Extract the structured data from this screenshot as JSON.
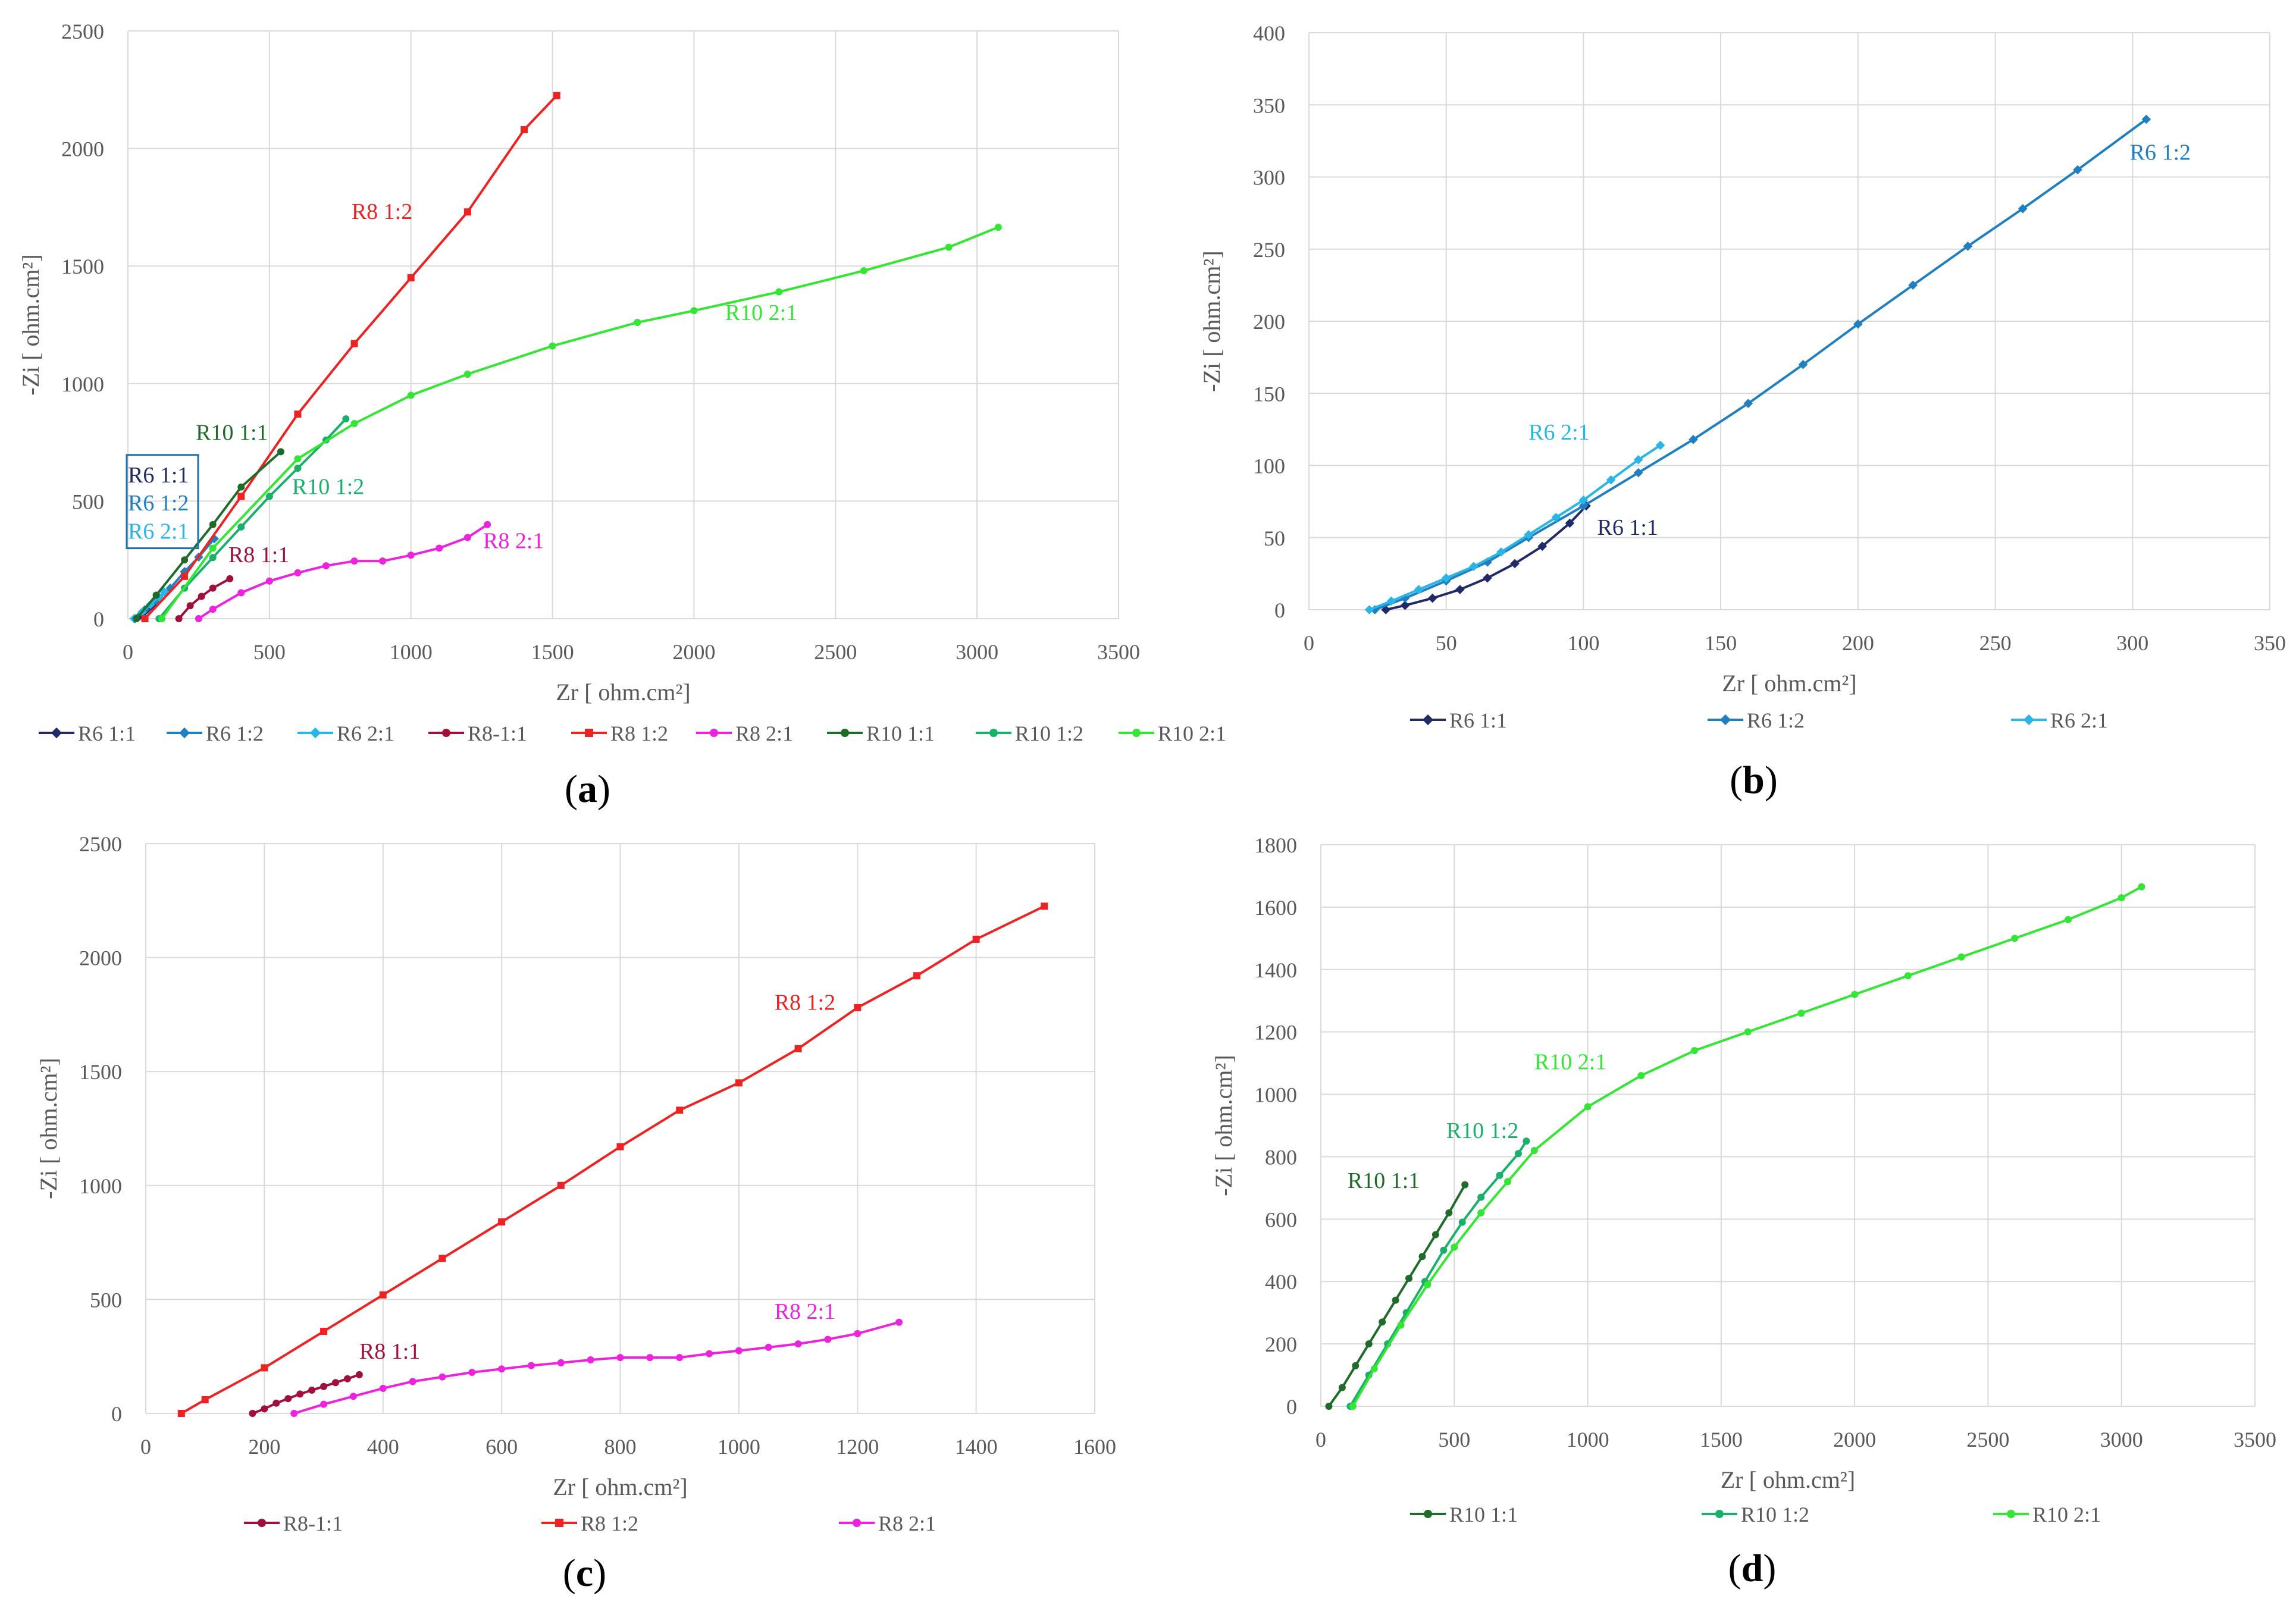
{
  "chart_data": [
    {
      "panel_label": "(a)",
      "type": "line",
      "xlabel": "Zr [ ohm.cm²]",
      "ylabel": "-Zi [ ohm.cm²]",
      "xlim": [
        0,
        3500
      ],
      "xstep": 500,
      "ylim": [
        0,
        2500
      ],
      "ystep": 500,
      "grid": true,
      "legend_position": "bottom",
      "boxed_label_group": [
        "R6 1:1",
        "R6 1:2",
        "R6 2:1"
      ],
      "series": [
        {
          "name": "R6 1:1",
          "legend": "R6 1:1",
          "color": "#1f2a66",
          "marker": "diamond",
          "x": [
            25,
            40,
            55,
            70,
            85,
            101
          ],
          "y": [
            0,
            10,
            25,
            42,
            58,
            72
          ]
        },
        {
          "name": "R6 1:2",
          "legend": "R6 1:2",
          "color": "#1f7fc1",
          "marker": "diamond",
          "x": [
            24,
            60,
            100,
            150,
            200,
            250,
            305
          ],
          "y": [
            0,
            38,
            78,
            130,
            200,
            262,
            340
          ]
        },
        {
          "name": "R6 2:1",
          "legend": "R6 2:1",
          "color": "#29b6e6",
          "marker": "diamond",
          "x": [
            22,
            50,
            80,
            110,
            128
          ],
          "y": [
            0,
            28,
            60,
            92,
            114
          ]
        },
        {
          "name": "R8-1:1",
          "legend": "R8-1:1",
          "color": "#a0103a",
          "marker": "dot",
          "x": [
            180,
            220,
            260,
            300,
            360
          ],
          "y": [
            0,
            55,
            95,
            130,
            170
          ]
        },
        {
          "name": "R8 1:2",
          "legend": "R8 1:2",
          "color": "#ee2222",
          "marker": "square",
          "x": [
            60,
            200,
            400,
            600,
            800,
            1000,
            1200,
            1400,
            1515
          ],
          "y": [
            0,
            180,
            520,
            870,
            1170,
            1450,
            1730,
            2080,
            2225
          ]
        },
        {
          "name": "R8 2:1",
          "legend": "R8 2:1",
          "color": "#ee22dd",
          "marker": "dot",
          "x": [
            250,
            300,
            400,
            500,
            600,
            700,
            800,
            900,
            1000,
            1100,
            1200,
            1270
          ],
          "y": [
            0,
            40,
            110,
            160,
            195,
            225,
            245,
            245,
            270,
            300,
            345,
            400
          ]
        },
        {
          "name": "R10 1:1",
          "legend": "R10 1:1",
          "color": "#1e6b2a",
          "marker": "dot",
          "x": [
            30,
            100,
            200,
            300,
            400,
            540
          ],
          "y": [
            0,
            100,
            250,
            400,
            560,
            710
          ]
        },
        {
          "name": "R10 1:2",
          "legend": "R10 1:2",
          "color": "#19b06a",
          "marker": "dot",
          "x": [
            110,
            200,
            300,
            400,
            500,
            600,
            700,
            770
          ],
          "y": [
            0,
            130,
            260,
            390,
            520,
            640,
            760,
            850
          ]
        },
        {
          "name": "R10 2:1",
          "legend": "R10 2:1",
          "color": "#33e633",
          "marker": "dot",
          "x": [
            120,
            300,
            600,
            800,
            1000,
            1200,
            1500,
            1800,
            2000,
            2300,
            2600,
            2900,
            3075
          ],
          "y": [
            0,
            300,
            680,
            830,
            950,
            1040,
            1160,
            1260,
            1310,
            1390,
            1480,
            1580,
            1665
          ]
        }
      ],
      "annotations": [
        {
          "text": "R8 1:2",
          "series": "R8 1:2",
          "x": 790,
          "y": 1700
        },
        {
          "text": "R10 2:1",
          "series": "R10 2:1",
          "x": 2110,
          "y": 1270
        },
        {
          "text": "R10 1:1",
          "series": "R10 1:1",
          "x": 240,
          "y": 760
        },
        {
          "text": "R10 1:2",
          "series": "R10 1:2",
          "x": 580,
          "y": 530
        },
        {
          "text": "R8 1:1",
          "series": "R8-1:1",
          "x": 355,
          "y": 240
        },
        {
          "text": "R8 2:1",
          "series": "R8 2:1",
          "x": 1255,
          "y": 300
        },
        {
          "text": "R6 1:1",
          "series": "R6 1:1",
          "x": 0,
          "y": 580
        },
        {
          "text": "R6 1:2",
          "series": "R6 1:2",
          "x": 0,
          "y": 460
        },
        {
          "text": "R6 2:1",
          "series": "R6 2:1",
          "x": 0,
          "y": 340
        }
      ]
    },
    {
      "panel_label": "(b)",
      "type": "line",
      "xlabel": "Zr [ ohm.cm²]",
      "ylabel": "-Zi [ ohm.cm²]",
      "xlim": [
        0,
        350
      ],
      "xstep": 50,
      "ylim": [
        0,
        400
      ],
      "ystep": 50,
      "grid": true,
      "legend_position": "bottom",
      "series": [
        {
          "name": "R6 1:1",
          "legend": "R6 1:1",
          "color": "#1f2a66",
          "marker": "diamond",
          "x": [
            28,
            35,
            45,
            55,
            65,
            75,
            85,
            95,
            101
          ],
          "y": [
            0,
            3,
            8,
            14,
            22,
            32,
            44,
            60,
            72
          ]
        },
        {
          "name": "R6 1:2",
          "legend": "R6 1:2",
          "color": "#1f7fc1",
          "marker": "diamond",
          "x": [
            24,
            35,
            50,
            65,
            80,
            100,
            120,
            140,
            160,
            180,
            200,
            220,
            240,
            260,
            280,
            305
          ],
          "y": [
            0,
            8,
            20,
            33,
            50,
            72,
            95,
            118,
            143,
            170,
            198,
            225,
            252,
            278,
            305,
            340
          ]
        },
        {
          "name": "R6 2:1",
          "legend": "R6 2:1",
          "color": "#29b6e6",
          "marker": "diamond",
          "x": [
            22,
            30,
            40,
            50,
            60,
            70,
            80,
            90,
            100,
            110,
            120,
            128
          ],
          "y": [
            0,
            6,
            14,
            22,
            30,
            40,
            52,
            64,
            76,
            90,
            104,
            114
          ]
        }
      ],
      "annotations": [
        {
          "text": "R6 1:2",
          "series": "R6 1:2",
          "x": 299,
          "y": 312
        },
        {
          "text": "R6 2:1",
          "series": "R6 2:1",
          "x": 80,
          "y": 118
        },
        {
          "text": "R6 1:1",
          "series": "R6 1:1",
          "x": 105,
          "y": 52
        }
      ]
    },
    {
      "panel_label": "(c)",
      "type": "line",
      "xlabel": "Zr [ ohm.cm²]",
      "ylabel": "-Zi [ ohm.cm²]",
      "xlim": [
        0,
        1600
      ],
      "xstep": 200,
      "ylim": [
        0,
        2500
      ],
      "ystep": 500,
      "grid": true,
      "legend_position": "bottom",
      "series": [
        {
          "name": "R8-1:1",
          "legend": "R8-1:1",
          "color": "#a0103a",
          "marker": "dot",
          "x": [
            180,
            200,
            220,
            240,
            260,
            280,
            300,
            320,
            340,
            360
          ],
          "y": [
            0,
            20,
            45,
            65,
            85,
            102,
            118,
            135,
            152,
            170
          ]
        },
        {
          "name": "R8 1:2",
          "legend": "R8 1:2",
          "color": "#ee2222",
          "marker": "square",
          "x": [
            60,
            100,
            200,
            300,
            400,
            500,
            600,
            700,
            800,
            900,
            1000,
            1100,
            1200,
            1300,
            1400,
            1515
          ],
          "y": [
            0,
            60,
            200,
            360,
            520,
            680,
            840,
            1000,
            1170,
            1330,
            1450,
            1600,
            1780,
            1920,
            2080,
            2225
          ]
        },
        {
          "name": "R8 2:1",
          "legend": "R8 2:1",
          "color": "#ee22dd",
          "marker": "dot",
          "x": [
            250,
            300,
            350,
            400,
            450,
            500,
            550,
            600,
            650,
            700,
            750,
            800,
            850,
            900,
            950,
            1000,
            1050,
            1100,
            1150,
            1200,
            1270
          ],
          "y": [
            0,
            40,
            75,
            110,
            140,
            160,
            180,
            195,
            210,
            222,
            235,
            245,
            245,
            245,
            262,
            275,
            290,
            305,
            325,
            350,
            400
          ]
        }
      ],
      "annotations": [
        {
          "text": "R8 1:2",
          "series": "R8 1:2",
          "x": 1060,
          "y": 1770
        },
        {
          "text": "R8 1:1",
          "series": "R8-1:1",
          "x": 360,
          "y": 240
        },
        {
          "text": "R8 2:1",
          "series": "R8 2:1",
          "x": 1060,
          "y": 415
        }
      ]
    },
    {
      "panel_label": "(d)",
      "type": "line",
      "xlabel": "Zr [ ohm.cm²]",
      "ylabel": "-Zi [ ohm.cm²]",
      "xlim": [
        0,
        3500
      ],
      "xstep": 500,
      "ylim": [
        0,
        1800
      ],
      "ystep": 200,
      "grid": true,
      "legend_position": "bottom",
      "series": [
        {
          "name": "R10 1:1",
          "legend": "R10 1:1",
          "color": "#1e6b2a",
          "marker": "dot",
          "x": [
            30,
            80,
            130,
            180,
            230,
            280,
            330,
            380,
            430,
            480,
            540
          ],
          "y": [
            0,
            60,
            130,
            200,
            270,
            340,
            410,
            480,
            550,
            620,
            710
          ]
        },
        {
          "name": "R10 1:2",
          "legend": "R10 1:2",
          "color": "#19b06a",
          "marker": "dot",
          "x": [
            110,
            180,
            250,
            320,
            390,
            460,
            530,
            600,
            670,
            740,
            770
          ],
          "y": [
            0,
            100,
            200,
            300,
            400,
            500,
            590,
            670,
            740,
            810,
            850
          ]
        },
        {
          "name": "R10 2:1",
          "legend": "R10 2:1",
          "color": "#33e633",
          "marker": "dot",
          "x": [
            120,
            200,
            300,
            400,
            500,
            600,
            700,
            800,
            1000,
            1200,
            1400,
            1600,
            1800,
            2000,
            2200,
            2400,
            2600,
            2800,
            3000,
            3075
          ],
          "y": [
            0,
            120,
            260,
            390,
            510,
            620,
            720,
            820,
            960,
            1060,
            1140,
            1200,
            1260,
            1320,
            1380,
            1440,
            1500,
            1560,
            1630,
            1665
          ]
        }
      ],
      "annotations": [
        {
          "text": "R10 2:1",
          "series": "R10 2:1",
          "x": 800,
          "y": 1080
        },
        {
          "text": "R10 1:2",
          "series": "R10 1:2",
          "x": 470,
          "y": 860
        },
        {
          "text": "R10 1:1",
          "series": "R10 1:1",
          "x": 100,
          "y": 700
        }
      ]
    }
  ]
}
